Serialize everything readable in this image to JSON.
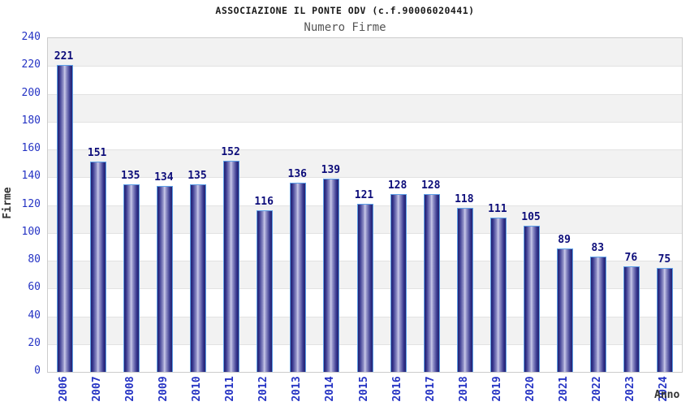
{
  "header": {
    "title": "ASSOCIAZIONE IL PONTE ODV (c.f.90006020441)",
    "subtitle": "Numero Firme"
  },
  "chart_data": {
    "type": "bar",
    "title": "ASSOCIAZIONE IL PONTE ODV (c.f.90006020441)",
    "subtitle": "Numero Firme",
    "xlabel": "Anno",
    "ylabel": "Firme",
    "categories": [
      "2006",
      "2007",
      "2008",
      "2009",
      "2010",
      "2011",
      "2012",
      "2013",
      "2014",
      "2015",
      "2016",
      "2017",
      "2018",
      "2019",
      "2020",
      "2021",
      "2022",
      "2023",
      "2024"
    ],
    "values": [
      221,
      151,
      135,
      134,
      135,
      152,
      116,
      136,
      139,
      121,
      128,
      128,
      118,
      111,
      105,
      89,
      83,
      76,
      75
    ],
    "ylim": [
      0,
      240
    ],
    "ytick_step": 20,
    "yticks": [
      0,
      20,
      40,
      60,
      80,
      100,
      120,
      140,
      160,
      180,
      200,
      220,
      240
    ],
    "grid": "horizontal-bands-alternating",
    "legend": "none",
    "colors": {
      "axis_label_blue": "#2533c4",
      "value_label_navy": "#0d0d7a",
      "band_gray": "#f2f2f2",
      "grid_line": "#e2e2e2",
      "plot_border": "#cccccc",
      "bar_dark": "#22226f",
      "bar_mid": "#9797cc",
      "bar_highlight": "#cacae9",
      "bar_border": "#5ea0e8",
      "title_color": "#1a1a1a",
      "subtitle_color": "#555555",
      "axis_title_color": "#333333"
    }
  }
}
